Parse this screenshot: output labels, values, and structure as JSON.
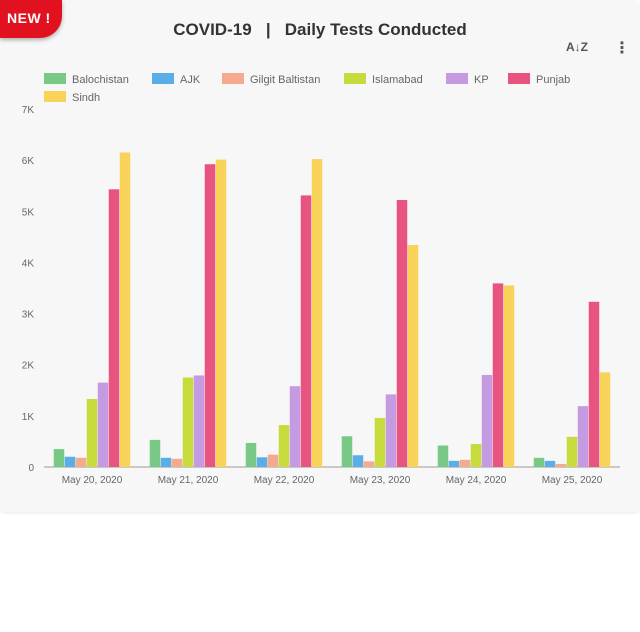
{
  "badge": {
    "label": "NEW !"
  },
  "title": "COVID-19   |   Daily Tests Conducted",
  "toolbar": {
    "sort_icon": "sort-az-icon",
    "more_icon": "more-vert-icon"
  },
  "colors": {
    "Balochistan": "#77c985",
    "AJK": "#5aaee6",
    "Gilgit Baltistan": "#f5a98e",
    "Islamabad": "#c7db3c",
    "KP": "#c59ae0",
    "Punjab": "#e8537f",
    "Sindh": "#f9d25a"
  },
  "chart_data": {
    "type": "bar",
    "categories": [
      "May 20, 2020",
      "May 21, 2020",
      "May 22, 2020",
      "May 23, 2020",
      "May 24, 2020",
      "May 25, 2020"
    ],
    "series": [
      {
        "name": "Balochistan",
        "values": [
          350,
          530,
          470,
          600,
          420,
          180
        ]
      },
      {
        "name": "AJK",
        "values": [
          200,
          180,
          190,
          230,
          120,
          120
        ]
      },
      {
        "name": "Gilgit Baltistan",
        "values": [
          180,
          160,
          240,
          110,
          140,
          60
        ]
      },
      {
        "name": "Islamabad",
        "values": [
          1330,
          1750,
          820,
          960,
          450,
          590
        ]
      },
      {
        "name": "KP",
        "values": [
          1650,
          1790,
          1580,
          1420,
          1800,
          1190
        ]
      },
      {
        "name": "Punjab",
        "values": [
          5430,
          5920,
          5310,
          5220,
          3590,
          3230
        ]
      },
      {
        "name": "Sindh",
        "values": [
          6150,
          6010,
          6020,
          4340,
          3550,
          1850
        ]
      }
    ],
    "yticks": [
      "0",
      "1K",
      "2K",
      "3K",
      "4K",
      "5K",
      "6K",
      "7K"
    ],
    "ylim": [
      0,
      7000
    ],
    "xlabel": "",
    "ylabel": "",
    "legend_position": "top-left"
  }
}
